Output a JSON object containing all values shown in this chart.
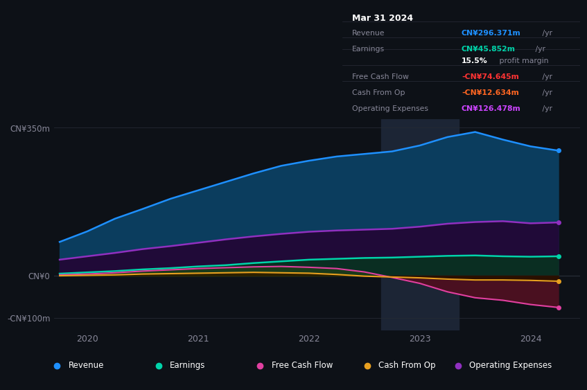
{
  "background_color": "#0d1117",
  "plot_bg_color": "#0d1117",
  "grid_color": "#252a33",
  "x_years": [
    2019.75,
    2020.0,
    2020.25,
    2020.5,
    2020.75,
    2021.0,
    2021.25,
    2021.5,
    2021.75,
    2022.0,
    2022.25,
    2022.5,
    2022.75,
    2023.0,
    2023.25,
    2023.5,
    2023.75,
    2024.0,
    2024.25
  ],
  "revenue": [
    80,
    105,
    135,
    158,
    182,
    202,
    222,
    242,
    260,
    272,
    282,
    288,
    294,
    308,
    328,
    340,
    322,
    306,
    296
  ],
  "earnings": [
    5,
    8,
    11,
    15,
    18,
    22,
    25,
    30,
    34,
    38,
    40,
    42,
    43,
    45,
    47,
    48,
    46,
    45,
    46
  ],
  "free_cash_flow": [
    2,
    4,
    7,
    11,
    14,
    17,
    19,
    21,
    22,
    20,
    17,
    9,
    -4,
    -18,
    -38,
    -52,
    -58,
    -68,
    -75
  ],
  "cash_from_op": [
    0,
    1,
    2,
    4,
    5,
    6,
    7,
    8,
    7,
    6,
    3,
    -1,
    -3,
    -5,
    -8,
    -10,
    -10,
    -11,
    -13
  ],
  "operating_expenses": [
    38,
    46,
    54,
    63,
    70,
    78,
    86,
    93,
    99,
    104,
    107,
    109,
    111,
    116,
    123,
    127,
    129,
    124,
    126
  ],
  "revenue_color": "#1e90ff",
  "revenue_fill": "#0b3d5e",
  "earnings_color": "#00d4aa",
  "earnings_fill": "#0a2e22",
  "free_cash_flow_color": "#e040a0",
  "free_cash_flow_fill_pos": "#1a3a1a",
  "free_cash_flow_fill_neg": "#4a1020",
  "cash_from_op_color": "#e8a020",
  "cash_from_op_fill_pos": "#2a2000",
  "cash_from_op_fill_neg": "#2a1000",
  "operating_expenses_color": "#9030c0",
  "operating_expenses_fill": "#200a38",
  "ylim": [
    -130,
    370
  ],
  "ytick_vals": [
    -100,
    0,
    350
  ],
  "ytick_labels": [
    "-CN¥100m",
    "CN¥0",
    "CN¥350m"
  ],
  "xlim": [
    2019.7,
    2024.45
  ],
  "xticks": [
    2020,
    2021,
    2022,
    2023,
    2024
  ],
  "xtick_labels": [
    "2020",
    "2021",
    "2022",
    "2023",
    "2024"
  ],
  "highlight_x_start": 2022.65,
  "highlight_x_end": 2023.35,
  "info_box": {
    "date": "Mar 31 2024",
    "rows": [
      {
        "label": "Revenue",
        "value": "CN¥296.371m",
        "suffix": " /yr",
        "value_color": "#1e90ff",
        "divider_before": true
      },
      {
        "label": "Earnings",
        "value": "CN¥45.852m",
        "suffix": " /yr",
        "value_color": "#00d4aa",
        "divider_before": true
      },
      {
        "label": "",
        "value": "15.5%",
        "suffix": " profit margin",
        "value_color": "#ffffff",
        "bold_value": true,
        "divider_before": false
      },
      {
        "label": "Free Cash Flow",
        "value": "-CN¥74.645m",
        "suffix": " /yr",
        "value_color": "#ff3333",
        "divider_before": true
      },
      {
        "label": "Cash From Op",
        "value": "-CN¥12.634m",
        "suffix": " /yr",
        "value_color": "#ff6622",
        "divider_before": true
      },
      {
        "label": "Operating Expenses",
        "value": "CN¥126.478m",
        "suffix": " /yr",
        "value_color": "#cc44ff",
        "divider_before": true
      }
    ]
  },
  "legend_items": [
    {
      "label": "Revenue",
      "color": "#1e90ff"
    },
    {
      "label": "Earnings",
      "color": "#00d4aa"
    },
    {
      "label": "Free Cash Flow",
      "color": "#e040a0"
    },
    {
      "label": "Cash From Op",
      "color": "#e8a020"
    },
    {
      "label": "Operating Expenses",
      "color": "#9030c0"
    }
  ],
  "dot_values": [
    296,
    46,
    -75,
    -13,
    126
  ],
  "dot_colors": [
    "#1e90ff",
    "#00d4aa",
    "#e040a0",
    "#e8a020",
    "#9030c0"
  ]
}
